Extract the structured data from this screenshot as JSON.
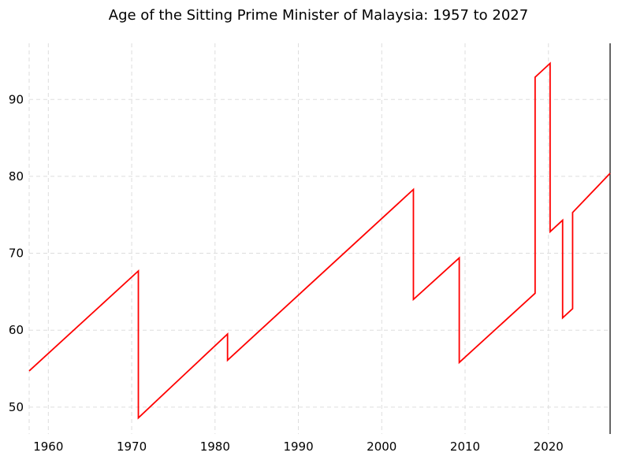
{
  "chart_data": {
    "type": "line",
    "title": "Age of the Sitting Prime Minister of Malaysia: 1957 to 2027",
    "xlabel": "",
    "ylabel": "",
    "xlim": [
      1957.7,
      2027.4
    ],
    "ylim": [
      46.5,
      97.3
    ],
    "xticks": [
      1960,
      1970,
      1980,
      1990,
      2000,
      2010,
      2020
    ],
    "yticks": [
      50,
      60,
      70,
      80,
      90
    ],
    "grid": true,
    "grid_style": "dashed",
    "legend": "none",
    "series": [
      {
        "color": "#ff0000",
        "points": [
          [
            1957.7,
            54.7
          ],
          [
            1970.8,
            67.7
          ],
          [
            1970.8,
            48.6
          ],
          [
            1976.1,
            54.0
          ],
          [
            1981.5,
            59.5
          ],
          [
            1981.5,
            56.1
          ],
          [
            2003.8,
            78.3
          ],
          [
            2003.8,
            64.0
          ],
          [
            2009.3,
            69.4
          ],
          [
            2009.3,
            55.8
          ],
          [
            2018.4,
            64.8
          ],
          [
            2018.4,
            92.9
          ],
          [
            2020.2,
            94.7
          ],
          [
            2020.2,
            72.8
          ],
          [
            2021.7,
            74.3
          ],
          [
            2021.7,
            61.6
          ],
          [
            2022.9,
            62.8
          ],
          [
            2022.9,
            75.3
          ],
          [
            2027.4,
            80.4
          ]
        ]
      }
    ]
  }
}
